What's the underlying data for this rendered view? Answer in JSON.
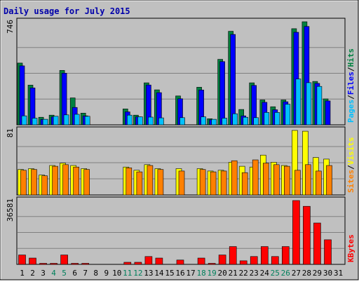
{
  "colors": {
    "background": "#c0c0c0",
    "panel": "#c0c0c0",
    "title": "#0000aa",
    "hits": "#008040",
    "files": "#0000ff",
    "pages": "#00c0ff",
    "visits": "#ffff00",
    "sites": "#ff8000",
    "kbytes": "#ff0000",
    "weekend": "#00805c",
    "weekday": "#000000"
  },
  "chart_data": {
    "type": "bar",
    "title": "Daily usage for July 2015",
    "categories": [
      "1",
      "2",
      "3",
      "4",
      "5",
      "6",
      "7",
      "8",
      "9",
      "10",
      "11",
      "12",
      "13",
      "14",
      "15",
      "16",
      "17",
      "18",
      "19",
      "20",
      "21",
      "22",
      "23",
      "24",
      "25",
      "26",
      "27",
      "28",
      "29",
      "30",
      "31"
    ],
    "weekend_days": [
      "4",
      "5",
      "11",
      "12",
      "18",
      "19",
      "25",
      "26"
    ],
    "panels": [
      {
        "id": "hits-files-pages",
        "max_label": "746",
        "ylim": [
          0,
          746
        ],
        "legend": [
          {
            "text": "Pages",
            "color": "#00c0ff"
          },
          {
            "text": "/",
            "color": "#000000"
          },
          {
            "text": "Files",
            "color": "#0000ff"
          },
          {
            "text": "/",
            "color": "#000000"
          },
          {
            "text": "Hits",
            "color": "#008040"
          }
        ],
        "series": [
          {
            "name": "Hits",
            "color": "#008040",
            "values": [
              447,
              287,
              55,
              70,
              394,
              195,
              85,
              0,
              0,
              0,
              115,
              70,
              304,
              253,
              0,
              209,
              0,
              272,
              44,
              474,
              677,
              111,
              304,
              180,
              131,
              180,
              696,
              746,
              314,
              188,
              0
            ]
          },
          {
            "name": "Files",
            "color": "#0000ff",
            "values": [
              427,
              267,
              39,
              58,
              374,
              126,
              65,
              0,
              0,
              0,
              94,
              58,
              288,
              233,
              0,
              189,
              0,
              252,
              36,
              458,
              654,
              65,
              285,
              163,
              109,
              167,
              670,
              712,
              300,
              173,
              0
            ],
            "offset": 1
          },
          {
            "name": "Pages",
            "color": "#00c0ff",
            "values": [
              65,
              48,
              40,
              62,
              72,
              76,
              62,
              0,
              0,
              0,
              70,
              58,
              56,
              50,
              0,
              52,
              0,
              58,
              40,
              48,
              80,
              55,
              52,
              90,
              90,
              149,
              332,
              305,
              278,
              0,
              0
            ]
          }
        ]
      },
      {
        "id": "visits-sites",
        "max_label": "81",
        "ylim": [
          0,
          81
        ],
        "legend": [
          {
            "text": "Sites",
            "color": "#ff8000"
          },
          {
            "text": "/",
            "color": "#000000"
          },
          {
            "text": "Visits",
            "color": "#ffff00"
          }
        ],
        "series": [
          {
            "name": "Visits",
            "color": "#ffff00",
            "values": [
              32,
              33,
              25,
              37,
              40,
              37,
              33,
              0,
              0,
              0,
              35,
              31,
              38,
              33,
              0,
              33,
              0,
              33,
              30,
              31,
              41,
              36,
              35,
              50,
              41,
              37,
              81,
              80,
              47,
              45,
              0
            ],
            "offset": 0
          },
          {
            "name": "Sites",
            "color": "#ff8000",
            "values": [
              31,
              32,
              24,
              36,
              38,
              35,
              32,
              0,
              0,
              0,
              34,
              29,
              37,
              32,
              0,
              30,
              0,
              32,
              29,
              30,
              43,
              28,
              44,
              40,
              38,
              36,
              31,
              38,
              30,
              37,
              0
            ]
          }
        ]
      },
      {
        "id": "kbytes",
        "max_label": "36581",
        "ylim": [
          0,
          36581
        ],
        "legend": [
          {
            "text": "KBytes",
            "color": "#ff0000"
          }
        ],
        "series": [
          {
            "name": "KBytes",
            "color": "#ff0000",
            "values": [
              5400,
              3600,
              590,
              590,
              5400,
              590,
              590,
              0,
              0,
              0,
              1190,
              1190,
              4500,
              3600,
              0,
              2490,
              0,
              3600,
              590,
              5400,
              10200,
              2050,
              4500,
              10200,
              4500,
              10200,
              36581,
              33300,
              23700,
              14100,
              0
            ]
          }
        ]
      }
    ],
    "x_labels_colors": "weekend days shown in green"
  }
}
